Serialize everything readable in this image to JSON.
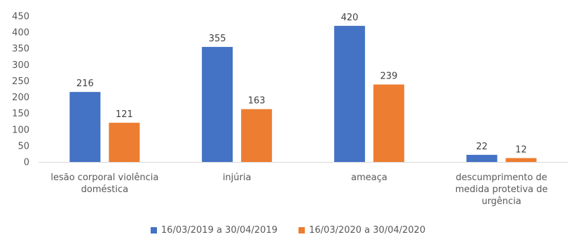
{
  "chart_data": {
    "type": "bar",
    "categories": [
      "lesão corporal violência doméstica",
      "injúria",
      "ameaça",
      "descumprimento de medida protetiva de urgência"
    ],
    "category_lines": [
      [
        "lesão corporal violência",
        "doméstica"
      ],
      [
        "injúria"
      ],
      [
        "ameaça"
      ],
      [
        "descumprimento de",
        "medida protetiva de",
        "urgência"
      ]
    ],
    "series": [
      {
        "name": "16/03/2019 a 30/04/2019",
        "values": [
          216,
          355,
          420,
          22
        ],
        "color": "#4472C4"
      },
      {
        "name": "16/03/2020 a 30/04/2020",
        "values": [
          121,
          163,
          239,
          12
        ],
        "color": "#ED7D31"
      }
    ],
    "ylim": [
      0,
      450
    ],
    "yticks": [
      0,
      50,
      100,
      150,
      200,
      250,
      300,
      350,
      400,
      450
    ],
    "data_labels": true,
    "grid": false,
    "legend_position": "bottom"
  }
}
